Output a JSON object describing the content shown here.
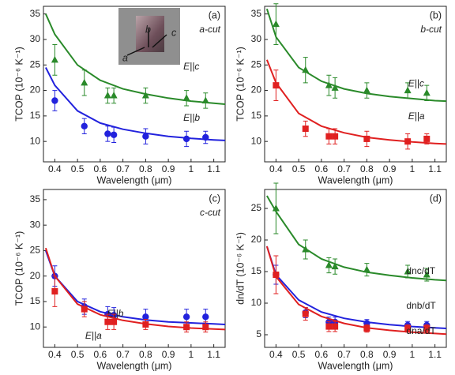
{
  "chart_data": [
    {
      "type": "scatter",
      "panel_label": "(a)",
      "subtitle": "a-cut",
      "xlabel": "Wavelength (μm)",
      "ylabel": "TCOP (10⁻⁶ K⁻¹)",
      "inset_labels": [
        "a",
        "b",
        "c"
      ],
      "xlim": [
        0.35,
        1.15
      ],
      "xticks": [
        0.4,
        0.5,
        0.6,
        0.7,
        0.8,
        0.9,
        1.0,
        1.1
      ],
      "ylim": [
        6,
        36.5
      ],
      "yticks": [
        10,
        15,
        20,
        25,
        30,
        35
      ],
      "x": [
        0.4,
        0.53,
        0.633,
        0.66,
        0.8,
        0.98,
        1.064
      ],
      "fit_x": [
        0.36,
        0.4,
        0.5,
        0.6,
        0.7,
        0.8,
        0.9,
        1.0,
        1.1,
        1.15
      ],
      "series": [
        {
          "name": "E||c",
          "color": "#2a8a2a",
          "marker": "triangle",
          "values": [
            26,
            21.5,
            19,
            19,
            19,
            18.5,
            18
          ],
          "errors": [
            3,
            2.5,
            1.5,
            1.5,
            1.5,
            1.5,
            1.5
          ],
          "fit": [
            35,
            31,
            25,
            22,
            20.3,
            19.3,
            18.5,
            17.9,
            17.5,
            17.3
          ]
        },
        {
          "name": "E||b",
          "color": "#2222dd",
          "marker": "circle",
          "values": [
            18,
            13,
            11.5,
            11.3,
            11,
            10.5,
            10.8
          ],
          "errors": [
            2,
            1.5,
            1.5,
            1.5,
            1.5,
            1.5,
            1.2
          ],
          "fit": [
            24.5,
            21,
            16,
            13.6,
            12.4,
            11.6,
            11,
            10.6,
            10.3,
            10.2
          ]
        }
      ]
    },
    {
      "type": "scatter",
      "panel_label": "(b)",
      "subtitle": "b-cut",
      "xlabel": "Wavelength (μm)",
      "ylabel": "TCOP (10⁻⁶ K⁻¹)",
      "xlim": [
        0.35,
        1.15
      ],
      "xticks": [
        0.4,
        0.5,
        0.6,
        0.7,
        0.8,
        0.9,
        1.0,
        1.1
      ],
      "ylim": [
        6,
        36.5
      ],
      "yticks": [
        10,
        15,
        20,
        25,
        30,
        35
      ],
      "x": [
        0.4,
        0.53,
        0.633,
        0.66,
        0.8,
        0.98,
        1.064
      ],
      "fit_x": [
        0.36,
        0.4,
        0.5,
        0.6,
        0.7,
        0.8,
        0.9,
        1.0,
        1.1,
        1.15
      ],
      "series": [
        {
          "name": "E||c",
          "color": "#2a8a2a",
          "marker": "triangle",
          "values": [
            33,
            24,
            21,
            20.5,
            20,
            20,
            19.5
          ],
          "errors": [
            4,
            2.5,
            2,
            2,
            1.5,
            1.5,
            1.5
          ],
          "fit": [
            36,
            30.5,
            24.5,
            21.8,
            20.3,
            19.4,
            18.8,
            18.4,
            18,
            17.9
          ]
        },
        {
          "name": "E||a",
          "color": "#e02020",
          "marker": "square",
          "values": [
            21,
            12.5,
            11,
            11,
            10.5,
            10,
            10.5
          ],
          "errors": [
            3,
            1.5,
            1.5,
            1.5,
            1.5,
            1.5,
            1
          ],
          "fit": [
            26,
            21.5,
            15.5,
            13,
            11.7,
            10.8,
            10.3,
            9.9,
            9.6,
            9.5
          ]
        }
      ]
    },
    {
      "type": "scatter",
      "panel_label": "(c)",
      "subtitle": "c-cut",
      "xlabel": "Wavelength (μm)",
      "ylabel": "TCOP (10⁻⁶ K⁻¹)",
      "xlim": [
        0.35,
        1.15
      ],
      "xticks": [
        0.4,
        0.5,
        0.6,
        0.7,
        0.8,
        0.9,
        1.0,
        1.1
      ],
      "ylim": [
        6,
        37
      ],
      "yticks": [
        10,
        15,
        20,
        25,
        30,
        35
      ],
      "x": [
        0.4,
        0.53,
        0.633,
        0.66,
        0.8,
        0.98,
        1.064
      ],
      "fit_x": [
        0.36,
        0.4,
        0.5,
        0.6,
        0.7,
        0.8,
        0.9,
        1.0,
        1.1,
        1.15
      ],
      "series": [
        {
          "name": "E||b",
          "color": "#2222dd",
          "marker": "circle",
          "values": [
            20,
            14,
            12.5,
            12.3,
            12,
            12,
            12
          ],
          "errors": [
            2,
            1.5,
            1.5,
            1.5,
            1.5,
            1.5,
            1.5
          ],
          "fit": [
            25,
            20,
            15,
            13,
            12,
            11.4,
            11,
            10.8,
            10.6,
            10.5
          ]
        },
        {
          "name": "E||a",
          "color": "#e02020",
          "marker": "square",
          "values": [
            17,
            13.5,
            11,
            11,
            10.5,
            10,
            10
          ],
          "errors": [
            3,
            1.5,
            1.5,
            1.5,
            1,
            1,
            1
          ],
          "fit": [
            25.5,
            20,
            14.5,
            12.4,
            11.3,
            10.6,
            10.1,
            9.8,
            9.6,
            9.5
          ]
        }
      ]
    },
    {
      "type": "scatter",
      "panel_label": "(d)",
      "xlabel": "Wavelength (μm)",
      "ylabel": "dn/dT (10⁻⁶ K⁻¹)",
      "xlim": [
        0.35,
        1.15
      ],
      "xticks": [
        0.4,
        0.5,
        0.6,
        0.7,
        0.8,
        0.9,
        1.0,
        1.1
      ],
      "ylim": [
        3,
        28
      ],
      "yticks": [
        5,
        10,
        15,
        20,
        25
      ],
      "x": [
        0.4,
        0.53,
        0.633,
        0.66,
        0.8,
        0.98,
        1.064
      ],
      "fit_x": [
        0.36,
        0.4,
        0.5,
        0.6,
        0.7,
        0.8,
        0.9,
        1.0,
        1.1,
        1.15
      ],
      "series": [
        {
          "name": "dnc/dT",
          "color": "#2a8a2a",
          "marker": "triangle",
          "values": [
            25,
            18.5,
            16,
            15.8,
            15.3,
            15,
            14.5
          ],
          "errors": [
            4,
            1.5,
            1.2,
            1.2,
            1,
            1,
            1
          ],
          "fit": [
            27,
            24.5,
            19.3,
            17,
            15.7,
            14.9,
            14.4,
            14,
            13.7,
            13.6
          ]
        },
        {
          "name": "dnb/dT",
          "color": "#2222dd",
          "marker": "circle",
          "values": [
            14.5,
            8.5,
            7,
            7,
            6.8,
            6.5,
            6.5
          ],
          "errors": [
            1.5,
            0.8,
            0.8,
            0.8,
            0.6,
            0.6,
            0.6
          ],
          "fit": [
            19,
            14.5,
            10.5,
            8.6,
            7.6,
            7,
            6.6,
            6.3,
            6.1,
            6
          ]
        },
        {
          "name": "dna/dT",
          "color": "#e02020",
          "marker": "square",
          "values": [
            14.5,
            8.3,
            6.3,
            6.3,
            6,
            6,
            6
          ],
          "errors": [
            3,
            1,
            0.8,
            0.8,
            0.6,
            0.6,
            0.6
          ],
          "fit": [
            19,
            14.2,
            9.8,
            7.9,
            6.8,
            6.1,
            5.7,
            5.4,
            5.2,
            5.1
          ]
        }
      ]
    }
  ]
}
